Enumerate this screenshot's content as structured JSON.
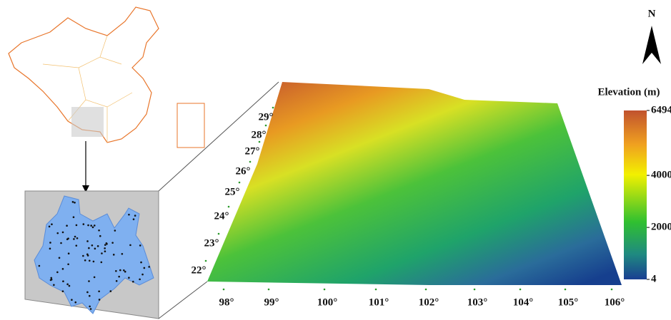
{
  "north_label": "N",
  "legend": {
    "title": "Elevation (m)",
    "ticks": [
      6494,
      4000,
      2000,
      4
    ]
  },
  "latitude_labels": [
    "22°",
    "23°",
    "24°",
    "25°",
    "26°",
    "27°",
    "28°",
    "29°"
  ],
  "longitude_labels": [
    "98°",
    "99°",
    "100°",
    "101°",
    "102°",
    "103°",
    "104°",
    "105°",
    "106°"
  ]
}
